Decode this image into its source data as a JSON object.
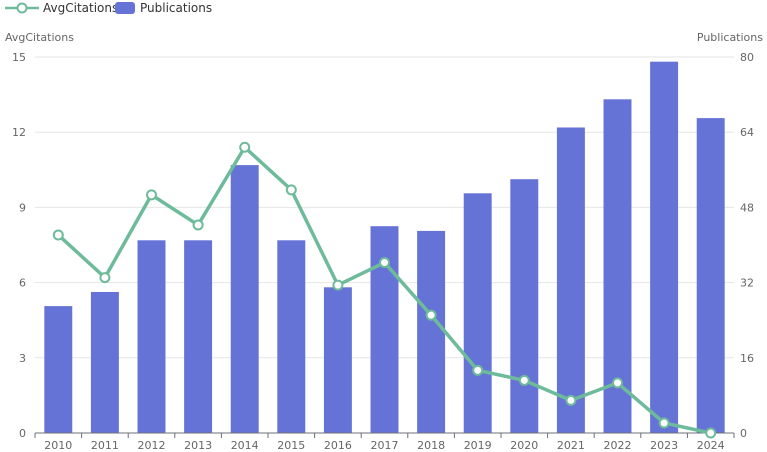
{
  "chart_data": {
    "type": "bar+line",
    "legend": {
      "placement": "top-left",
      "items": [
        {
          "name": "AvgCitations",
          "type": "line",
          "color": "#6dbb9b"
        },
        {
          "name": "Publications",
          "type": "bar",
          "color": "#6673d6"
        }
      ]
    },
    "categories": [
      "2010",
      "2011",
      "2012",
      "2013",
      "2014",
      "2015",
      "2016",
      "2017",
      "2018",
      "2019",
      "2020",
      "2021",
      "2022",
      "2023",
      "2024"
    ],
    "series": [
      {
        "name": "Publications",
        "type": "bar",
        "axis": "right",
        "color": "#6673d6",
        "values": [
          27,
          30,
          41,
          41,
          57,
          41,
          31,
          44,
          43,
          51,
          54,
          65,
          71,
          79,
          67
        ]
      },
      {
        "name": "AvgCitations",
        "type": "line",
        "axis": "left",
        "color": "#6dbb9b",
        "values": [
          7.9,
          6.2,
          9.5,
          8.3,
          11.4,
          9.7,
          5.9,
          6.8,
          4.7,
          2.5,
          2.1,
          1.3,
          2.0,
          0.4,
          0.0
        ]
      }
    ],
    "y_left": {
      "label": "AvgCitations",
      "min": 0,
      "max": 15,
      "ticks": [
        0,
        3,
        6,
        9,
        12,
        15
      ]
    },
    "y_right": {
      "label": "Publications",
      "min": 0,
      "max": 80,
      "ticks": [
        0,
        16,
        32,
        48,
        64,
        80
      ]
    },
    "grid": true
  }
}
